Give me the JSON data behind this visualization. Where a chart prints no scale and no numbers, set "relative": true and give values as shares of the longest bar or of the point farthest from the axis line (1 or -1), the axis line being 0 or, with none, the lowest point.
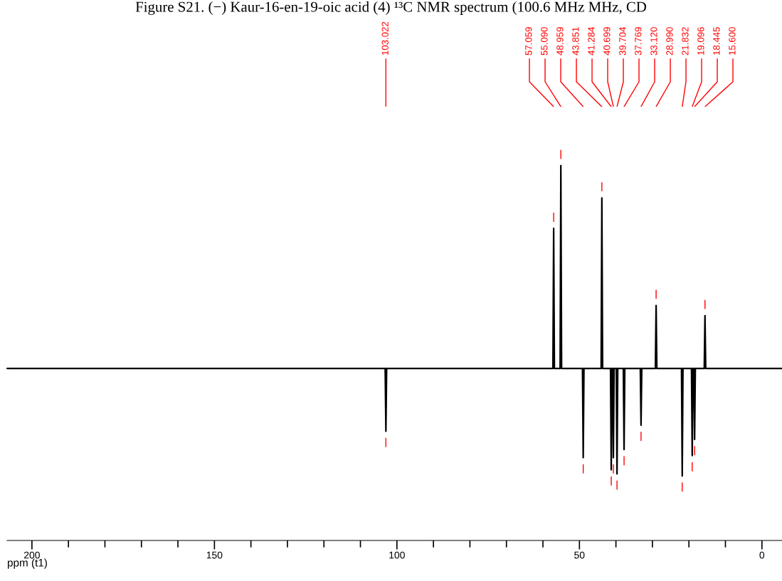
{
  "chart_data": {
    "type": "line",
    "title": "Figure S21. (−) Kaur-16-en-19-oic acid (4) ¹³C NMR spectrum (100.6 MHz MHz, CD",
    "xlabel": "ppm (t1)",
    "relative": true,
    "tick_labels": "x",
    "grid": false,
    "legend": false,
    "marker": "none",
    "line_style": "solid",
    "xlim": [
      206.8,
      -5.5
    ],
    "xticks": [
      200,
      150,
      100,
      50,
      0
    ],
    "series": [
      {
        "color": "#000000",
        "x": [
          206.8,
          103.222,
          103.022,
          102.822,
          57.259,
          57.059,
          56.859,
          55.29,
          55.09,
          54.89,
          49.159,
          48.959,
          48.759,
          44.051,
          43.851,
          43.651,
          41.484,
          41.284,
          41.084,
          40.899,
          40.699,
          40.499,
          39.904,
          39.704,
          39.504,
          37.969,
          37.769,
          37.569,
          33.32,
          33.12,
          32.92,
          29.19,
          28.99,
          28.79,
          22.032,
          21.832,
          21.632,
          19.296,
          19.096,
          18.896,
          18.645,
          18.445,
          18.245,
          15.8,
          15.6,
          15.4,
          -5.5
        ],
        "values": [
          0,
          0,
          -0.31,
          0,
          0,
          0.69,
          0,
          0,
          1,
          0,
          0,
          -0.44,
          0,
          0,
          0.84,
          0,
          0,
          -0.5,
          0,
          0,
          -0.44,
          0,
          0,
          -0.52,
          0,
          0,
          -0.4,
          0,
          0,
          -0.28,
          0,
          0,
          0.31,
          0,
          0,
          -0.53,
          0,
          0,
          -0.43,
          0,
          0,
          -0.35,
          0,
          0,
          0.26,
          0,
          0
        ]
      }
    ],
    "annotations": [
      "103.022",
      "57.059",
      "55.090",
      "48.959",
      "43.851",
      "41.284",
      "40.699",
      "39.704",
      "37.769",
      "33.120",
      "28.990",
      "21.832",
      "19.096",
      "18.445",
      "15.600"
    ]
  }
}
